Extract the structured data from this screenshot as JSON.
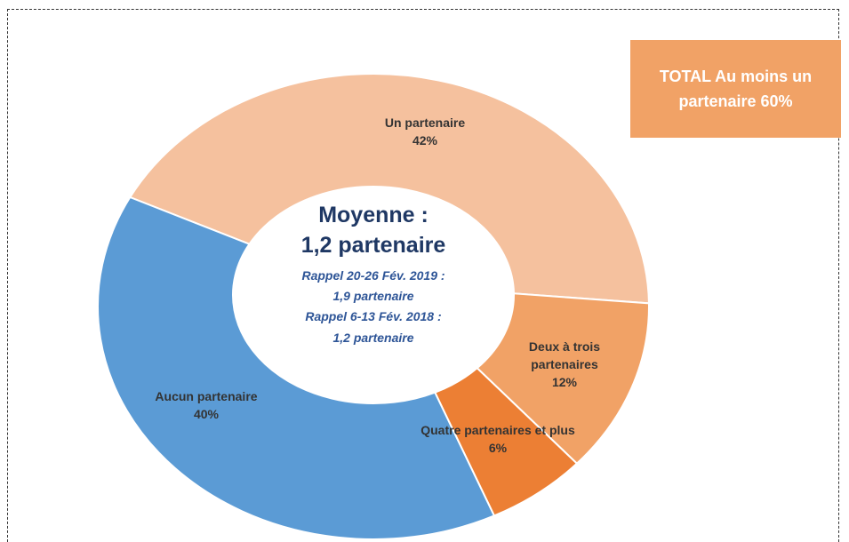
{
  "chart_data": {
    "type": "donut",
    "categories": [
      "Un partenaire",
      "Deux à trois partenaires",
      "Quatre partenaires et plus",
      "Aucun partenaire"
    ],
    "values": [
      42,
      12,
      6,
      40
    ],
    "value_labels": [
      "42%",
      "12%",
      "6%",
      "40%"
    ],
    "colors": [
      "#f5c19e",
      "#f1a266",
      "#ec7f34",
      "#5b9bd5"
    ],
    "center_text": [
      "Moyenne :",
      "1,2 partenaire",
      "Rappel 20-26 Fév. 2019 :",
      "1,9 partenaire",
      "Rappel 6-13 Fév. 2018 :",
      "1,2 partenaire"
    ],
    "total_box": "TOTAL Au moins un partenaire 60%"
  }
}
